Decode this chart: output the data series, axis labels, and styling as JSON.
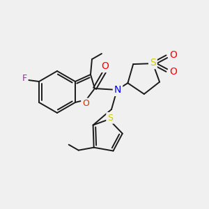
{
  "bg": "#f0f0f0",
  "bc": "#1a1a1a",
  "colors": {
    "F": "#dd00dd",
    "O": "#ff0000",
    "O_furan": "#cc3300",
    "N": "#0000ee",
    "S": "#cccc00"
  },
  "figsize": [
    3.0,
    3.0
  ],
  "dpi": 100
}
